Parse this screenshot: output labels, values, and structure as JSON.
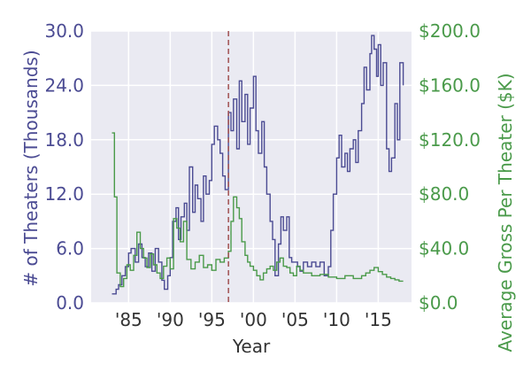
{
  "chart_data": {
    "type": "line",
    "xlabel": "Year",
    "ylabel_left": "# of Theaters (Thousands)",
    "ylabel_right": "Average Gross Per Theater ($K)",
    "xlim": [
      1980.5,
      2019.0
    ],
    "ylim_left": [
      0,
      30
    ],
    "ylim_right": [
      0,
      200
    ],
    "x_ticks": [
      1985,
      1990,
      1995,
      2000,
      2005,
      2010,
      2015
    ],
    "x_tick_labels": [
      "'85",
      "'90",
      "'95",
      "'00",
      "'05",
      "'10",
      "'15"
    ],
    "y_left_ticks": [
      0,
      6,
      12,
      18,
      24,
      30
    ],
    "y_left_tick_labels": [
      "0.0",
      "6.0",
      "12.0",
      "18.0",
      "24.0",
      "30.0"
    ],
    "y_right_ticks": [
      0,
      40,
      80,
      120,
      160,
      200
    ],
    "y_right_tick_labels": [
      "$0.0",
      "$40.0",
      "$80.0",
      "$120.0",
      "$160.0",
      "$200.0"
    ],
    "grid": true,
    "vline": {
      "x": 1997.0,
      "color": "#a05050",
      "style": "dashed"
    },
    "series": [
      {
        "axis": "left",
        "color": "#4b4b93",
        "x": [
          1983.0,
          1983.5,
          1983.8,
          1984.2,
          1984.6,
          1985.0,
          1985.3,
          1985.8,
          1986.2,
          1986.6,
          1987.0,
          1987.4,
          1987.8,
          1988.2,
          1988.6,
          1989.0,
          1989.3,
          1989.7,
          1990.0,
          1990.3,
          1990.7,
          1991.0,
          1991.3,
          1991.7,
          1992.0,
          1992.3,
          1992.7,
          1993.0,
          1993.3,
          1993.7,
          1994.0,
          1994.3,
          1994.7,
          1995.0,
          1995.3,
          1995.7,
          1996.0,
          1996.3,
          1996.6,
          1997.0,
          1997.3,
          1997.6,
          1998.0,
          1998.3,
          1998.6,
          1999.0,
          1999.3,
          1999.6,
          2000.0,
          2000.3,
          2000.6,
          2001.0,
          2001.3,
          2001.6,
          2002.0,
          2002.3,
          2002.6,
          2003.0,
          2003.3,
          2003.6,
          2004.0,
          2004.3,
          2004.6,
          2005.0,
          2005.3,
          2005.6,
          2006.0,
          2006.5,
          2007.0,
          2007.5,
          2008.0,
          2008.5,
          2009.0,
          2009.3,
          2009.6,
          2010.0,
          2010.3,
          2010.6,
          2011.0,
          2011.3,
          2011.6,
          2012.0,
          2012.3,
          2012.6,
          2013.0,
          2013.3,
          2013.6,
          2014.0,
          2014.2,
          2014.5,
          2014.8,
          2015.0,
          2015.3,
          2015.6,
          2016.0,
          2016.3,
          2016.6,
          2017.0,
          2017.3,
          2017.6,
          2018.0
        ],
        "values": [
          1.0,
          1.5,
          2.0,
          3.0,
          4.0,
          5.5,
          6.0,
          4.5,
          6.5,
          5.0,
          4.0,
          5.5,
          3.5,
          6.0,
          4.5,
          2.5,
          1.5,
          3.0,
          5.0,
          9.0,
          10.5,
          7.0,
          9.5,
          11.0,
          8.0,
          15.0,
          10.0,
          13.0,
          11.5,
          9.0,
          14.0,
          12.0,
          13.5,
          17.5,
          19.5,
          18.0,
          16.5,
          14.0,
          12.5,
          21.0,
          19.0,
          22.5,
          17.0,
          24.5,
          20.0,
          23.0,
          17.5,
          21.5,
          25.0,
          19.0,
          16.5,
          20.0,
          15.0,
          12.0,
          9.0,
          7.0,
          3.0,
          6.5,
          9.5,
          8.0,
          9.5,
          5.0,
          4.5,
          4.5,
          4.0,
          3.5,
          4.5,
          4.0,
          4.5,
          4.0,
          4.5,
          3.0,
          4.0,
          8.0,
          12.0,
          16.0,
          18.5,
          15.0,
          16.5,
          14.5,
          17.0,
          18.0,
          15.5,
          19.0,
          22.0,
          26.0,
          23.5,
          27.5,
          29.5,
          28.0,
          25.0,
          28.5,
          24.0,
          26.5,
          17.0,
          14.5,
          16.0,
          22.0,
          18.0,
          26.5,
          24.0
        ]
      },
      {
        "axis": "right",
        "color": "#4a9a4a",
        "x": [
          1983.0,
          1983.3,
          1983.6,
          1984.0,
          1984.4,
          1984.8,
          1985.2,
          1985.6,
          1986.0,
          1986.4,
          1986.8,
          1987.2,
          1987.6,
          1988.0,
          1988.4,
          1988.8,
          1989.2,
          1989.6,
          1990.0,
          1990.4,
          1990.8,
          1991.2,
          1991.6,
          1992.0,
          1992.5,
          1993.0,
          1993.5,
          1994.0,
          1994.5,
          1995.0,
          1995.5,
          1996.0,
          1996.5,
          1997.0,
          1997.3,
          1997.6,
          1998.0,
          1998.3,
          1998.6,
          1999.0,
          1999.3,
          1999.6,
          2000.0,
          2000.4,
          2000.8,
          2001.2,
          2001.6,
          2002.0,
          2002.4,
          2002.8,
          2003.2,
          2003.6,
          2004.0,
          2004.4,
          2004.8,
          2005.2,
          2005.6,
          2006.0,
          2007.0,
          2008.0,
          2009.0,
          2010.0,
          2011.0,
          2012.0,
          2013.0,
          2013.5,
          2014.0,
          2014.5,
          2015.0,
          2015.5,
          2016.0,
          2016.5,
          2017.0,
          2017.5,
          2018.0
        ],
        "values": [
          125.0,
          78.0,
          22.0,
          12.0,
          18.0,
          28.0,
          24.0,
          35.0,
          52.0,
          40.0,
          33.0,
          26.0,
          36.0,
          28.0,
          22.0,
          18.0,
          27.0,
          33.0,
          25.0,
          62.0,
          55.0,
          45.0,
          60.0,
          32.0,
          25.0,
          30.0,
          35.0,
          26.0,
          28.0,
          24.0,
          32.0,
          30.0,
          33.0,
          38.0,
          60.0,
          78.0,
          70.0,
          62.0,
          45.0,
          35.0,
          30.0,
          27.0,
          24.0,
          20.0,
          17.0,
          22.0,
          25.0,
          27.0,
          24.0,
          30.0,
          33.0,
          27.0,
          26.0,
          22.0,
          20.0,
          27.0,
          24.0,
          22.0,
          20.0,
          21.0,
          19.0,
          18.0,
          20.0,
          18.0,
          20.0,
          22.0,
          24.0,
          26.0,
          23.0,
          21.0,
          19.0,
          18.0,
          17.0,
          16.0,
          16.0
        ]
      }
    ]
  }
}
